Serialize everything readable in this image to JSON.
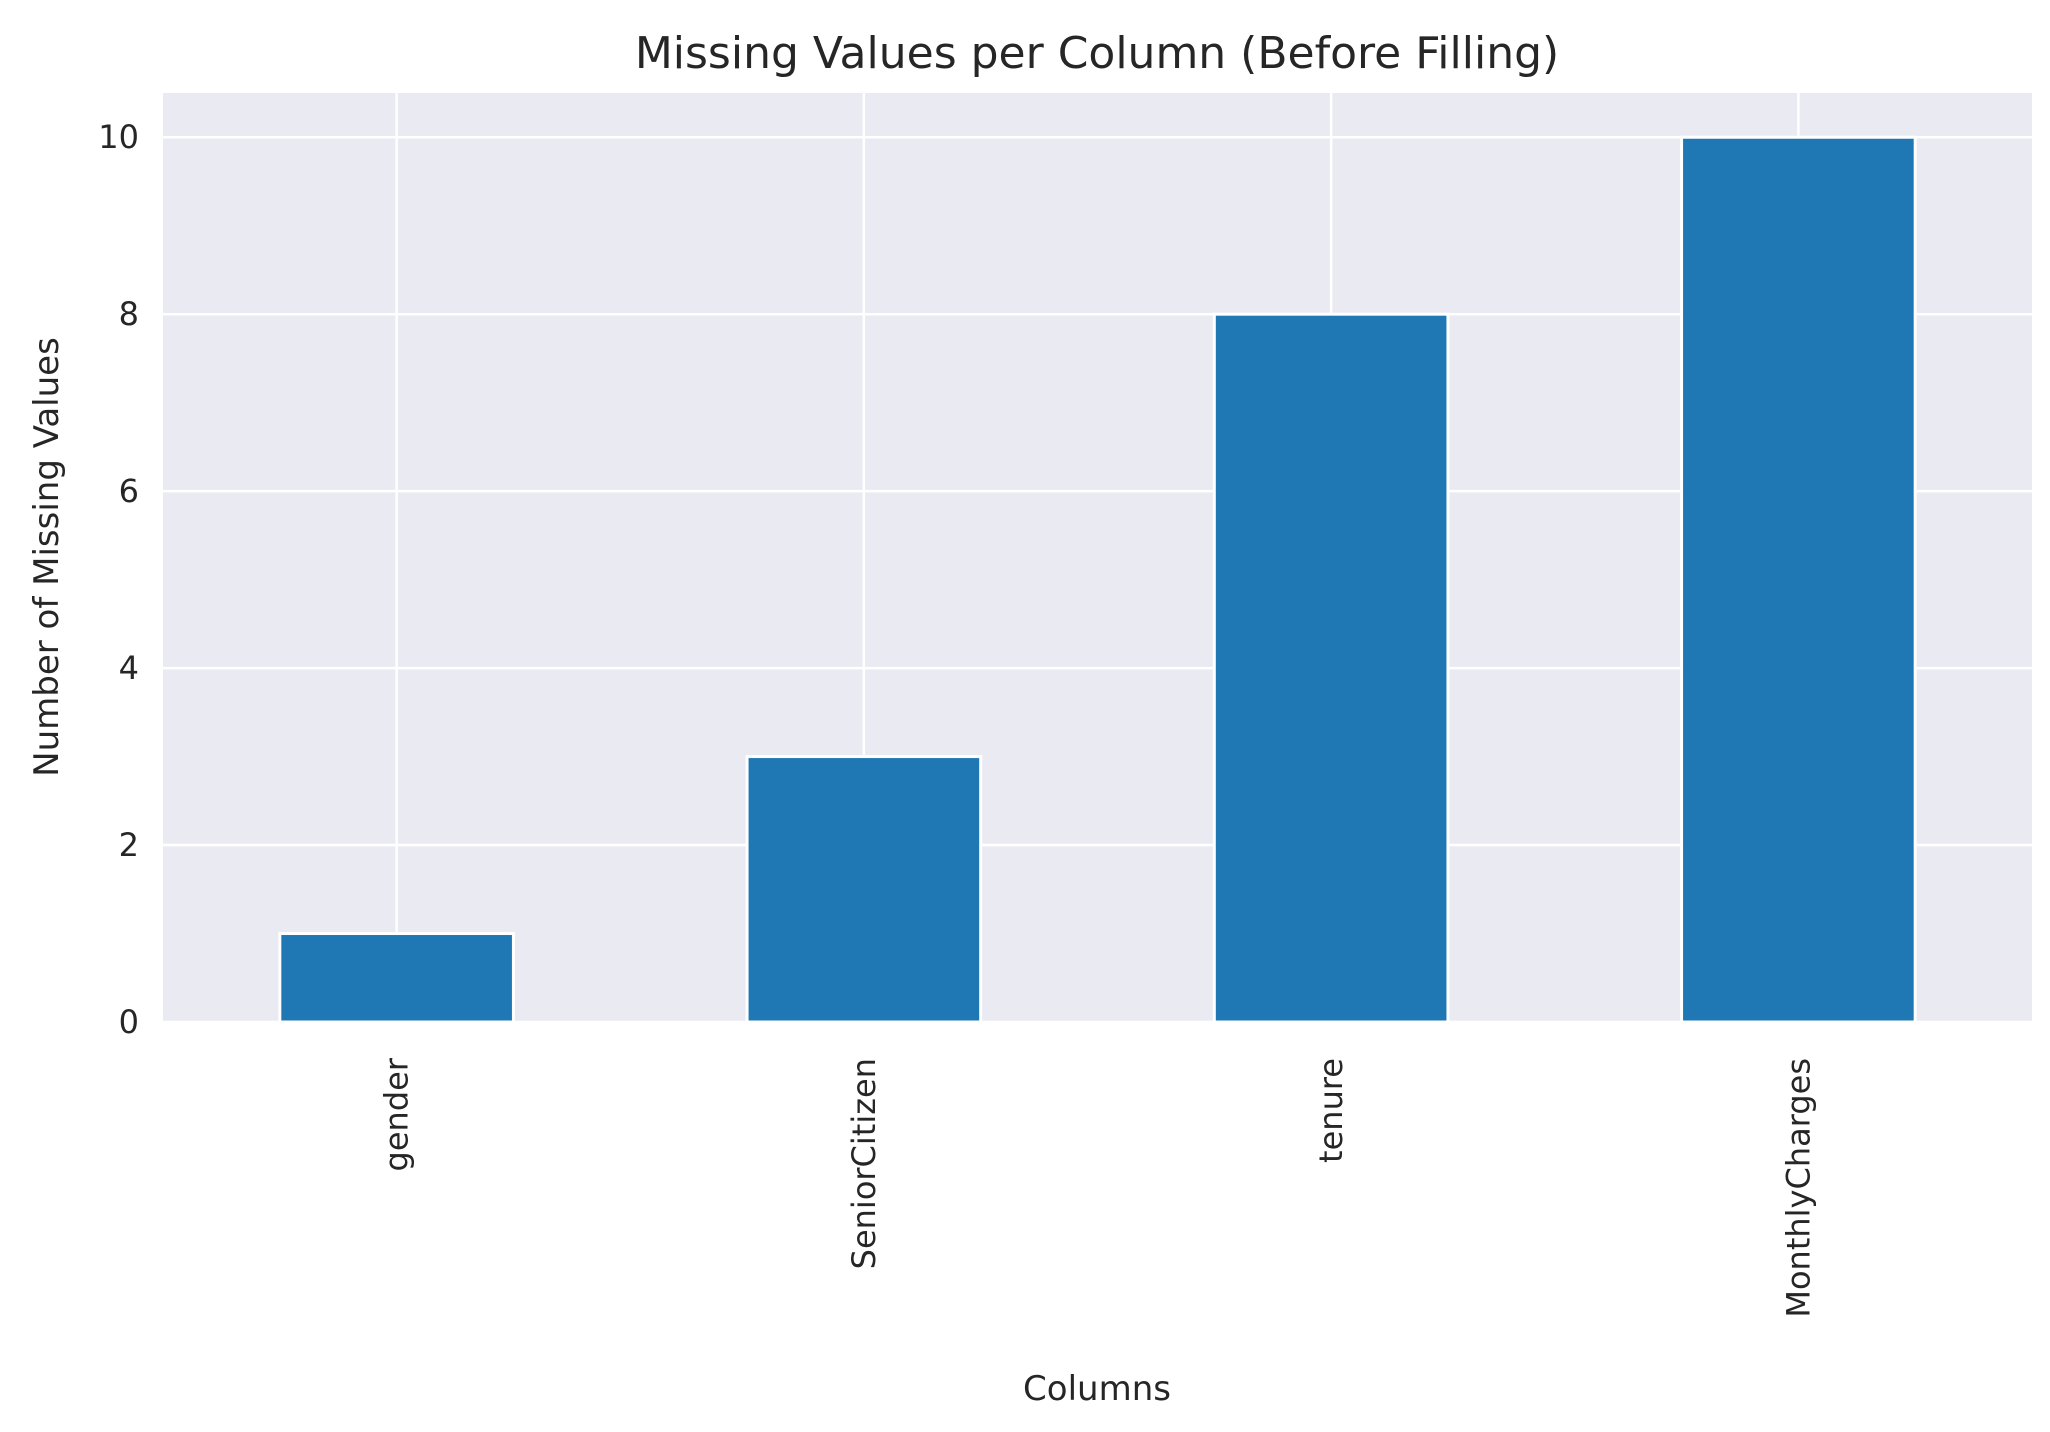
{
  "chart_data": {
    "type": "bar",
    "title": "Missing Values per Column (Before Filling)",
    "xlabel": "Columns",
    "ylabel": "Number of Missing Values",
    "categories": [
      "gender",
      "SeniorCitizen",
      "tenure",
      "MonthlyCharges"
    ],
    "values": [
      1,
      3,
      8,
      10
    ],
    "yticks": [
      "0",
      "2",
      "4",
      "6",
      "8",
      "10"
    ],
    "ylim": [
      0,
      10.5
    ],
    "grid": true,
    "legend": "none",
    "x_tick_rotation": "vertical",
    "colors": {
      "bar": "#1f77b4",
      "plot_background": "#eaeaf2",
      "grid": "#ffffff",
      "text": "#262626"
    }
  }
}
